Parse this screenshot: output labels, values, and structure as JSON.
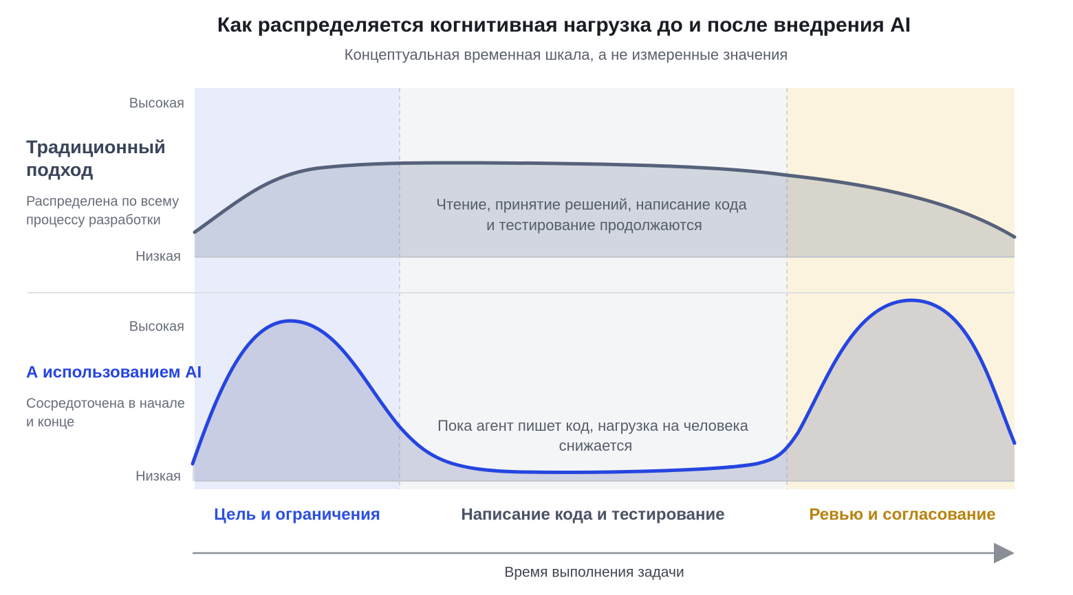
{
  "header": {
    "title": "Как распределяется когнитивная нагрузка до и после внедрения AI",
    "subtitle": "Концептуальная временная шкала, а не измеренные значения"
  },
  "traditional": {
    "heading": [
      "Традиционный",
      "подход"
    ],
    "description": [
      "Распределена по всему",
      "процессу разработки"
    ],
    "high_label": "Высокая",
    "low_label": "Низкая",
    "annotation": [
      "Чтение, принятие решений, написание кода",
      "и тестирование продолжаются"
    ]
  },
  "ai": {
    "heading": [
      "А использованием AI"
    ],
    "description": [
      "Сосредоточена в начале",
      "и конце"
    ],
    "high_label": "Высокая",
    "low_label": "Низкая",
    "annotation": [
      "Пока агент пишет код, нагрузка на человека",
      "снижается"
    ]
  },
  "phases": [
    "Цель и ограничения",
    "Написание кода и тестирование",
    "Ревью и согласование"
  ],
  "x_axis": {
    "label": "Время выполнения задачи"
  }
}
